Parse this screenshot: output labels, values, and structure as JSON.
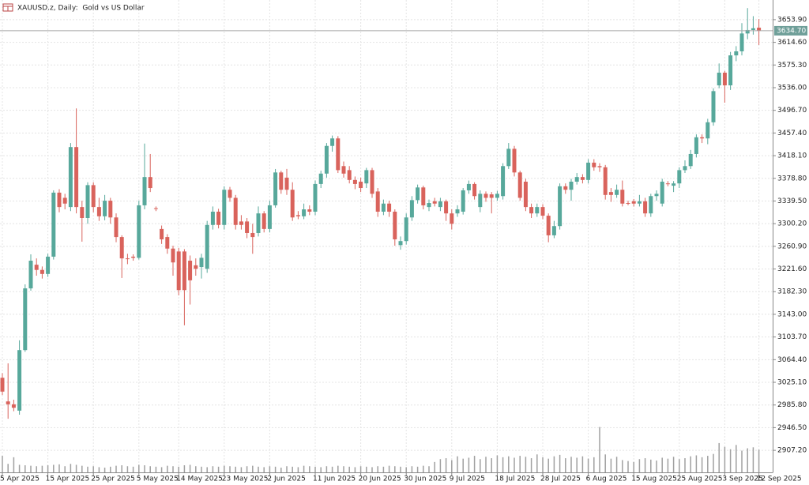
{
  "chart_data": {
    "type": "candlestick",
    "title": "XAUUSD.z, Daily:  Gold vs US Dollar",
    "categories": [
      "5 Apr 2025",
      null,
      null,
      null,
      null,
      null,
      null,
      null,
      "15 Apr 2025",
      null,
      null,
      null,
      null,
      null,
      null,
      null,
      "25 Apr 2025",
      null,
      null,
      null,
      null,
      null,
      null,
      null,
      "5 May 2025",
      null,
      null,
      null,
      null,
      null,
      null,
      "14 May 2025",
      null,
      null,
      null,
      null,
      null,
      null,
      null,
      "23 May 2025",
      null,
      null,
      null,
      null,
      null,
      null,
      null,
      "2 Jun 2025",
      null,
      null,
      null,
      null,
      null,
      null,
      null,
      "11 Jun 2025",
      null,
      null,
      null,
      null,
      null,
      null,
      null,
      "20 Jun 2025",
      null,
      null,
      null,
      null,
      null,
      null,
      null,
      "30 Jun 2025",
      null,
      null,
      null,
      null,
      null,
      null,
      null,
      "9 Jul 2025",
      null,
      null,
      null,
      null,
      null,
      null,
      null,
      "18 Jul 2025",
      null,
      null,
      null,
      null,
      null,
      null,
      null,
      "28 Jul 2025",
      null,
      null,
      null,
      null,
      null,
      null,
      null,
      "6 Aug 2025",
      null,
      null,
      null,
      null,
      null,
      null,
      null,
      "15 Aug 2025",
      null,
      null,
      null,
      null,
      null,
      null,
      null,
      "25 Aug 2025",
      null,
      null,
      null,
      null,
      null,
      null,
      null,
      "3 Sep 2025",
      null,
      null,
      null,
      null,
      null,
      "12 Sep 2025"
    ],
    "open": [
      3033,
      2992,
      2987,
      2976,
      3081,
      3188,
      3229,
      3220,
      3213,
      3243,
      3354,
      3345,
      3329,
      3433,
      3329,
      3310,
      3367,
      3329,
      3313,
      3340,
      3311,
      3277,
      3240,
      3243,
      3241,
      3332,
      3381,
      3327,
      3291,
      3277,
      3257,
      3252,
      3252,
      3236,
      3228,
      3225,
      3222,
      3298,
      3321,
      3298,
      3359,
      3345,
      3304,
      3304,
      3284,
      3284,
      3318,
      3291,
      3332,
      3389,
      3380,
      3359,
      3315,
      3313,
      3325,
      3321,
      3369,
      3387,
      3435,
      3448,
      3400,
      3393,
      3376,
      3373,
      3370,
      3393,
      3356,
      3321,
      3335,
      3321,
      3263,
      3270,
      3311,
      3341,
      3363,
      3329,
      3339,
      3329,
      3339,
      3318,
      3318,
      3321,
      3358,
      3369,
      3329,
      3352,
      3351,
      3345,
      3348,
      3400,
      3430,
      3389,
      3373,
      3329,
      3318,
      3329,
      3314,
      3280,
      3296,
      3365,
      3359,
      3373,
      3381,
      3376,
      3406,
      3400,
      3398,
      3355,
      3350,
      3359,
      3336,
      3339,
      3335,
      3339,
      3318,
      3348,
      3335,
      3370,
      3366,
      3370,
      3393,
      3400,
      3421,
      3450,
      3448,
      3476,
      3540,
      3562,
      3540,
      3592,
      3599,
      3630,
      3636,
      3640
    ],
    "high": [
      3041,
      3058,
      2995,
      3098,
      3195,
      3247,
      3240,
      3226,
      3248,
      3358,
      3360,
      3352,
      3440,
      3500,
      3340,
      3372,
      3372,
      3345,
      3350,
      3345,
      3318,
      3280,
      3248,
      3247,
      3340,
      3439,
      3421,
      3330,
      3297,
      3282,
      3262,
      3258,
      3256,
      3245,
      3240,
      3248,
      3305,
      3330,
      3326,
      3365,
      3364,
      3350,
      3315,
      3310,
      3300,
      3330,
      3322,
      3340,
      3395,
      3392,
      3395,
      3372,
      3322,
      3335,
      3332,
      3375,
      3392,
      3440,
      3453,
      3452,
      3408,
      3400,
      3382,
      3380,
      3397,
      3397,
      3362,
      3342,
      3340,
      3325,
      3278,
      3318,
      3348,
      3368,
      3366,
      3342,
      3345,
      3345,
      3342,
      3325,
      3332,
      3362,
      3375,
      3372,
      3358,
      3356,
      3355,
      3357,
      3405,
      3440,
      3435,
      3392,
      3378,
      3335,
      3335,
      3334,
      3318,
      3305,
      3370,
      3370,
      3378,
      3388,
      3386,
      3412,
      3412,
      3405,
      3402,
      3362,
      3368,
      3375,
      3340,
      3343,
      3350,
      3345,
      3352,
      3358,
      3378,
      3374,
      3374,
      3398,
      3410,
      3428,
      3455,
      3455,
      3482,
      3535,
      3578,
      3565,
      3598,
      3608,
      3648,
      3674,
      3660,
      3655
    ],
    "low": [
      3003,
      2962,
      2975,
      2969,
      3078,
      3184,
      3210,
      3205,
      3208,
      3238,
      3320,
      3325,
      3322,
      3318,
      3269,
      3300,
      3320,
      3305,
      3306,
      3300,
      3268,
      3206,
      3230,
      3236,
      3238,
      3325,
      3355,
      3322,
      3265,
      3248,
      3210,
      3176,
      3124,
      3160,
      3210,
      3205,
      3215,
      3290,
      3292,
      3290,
      3338,
      3290,
      3290,
      3275,
      3248,
      3278,
      3285,
      3285,
      3328,
      3352,
      3350,
      3305,
      3308,
      3308,
      3315,
      3315,
      3362,
      3380,
      3425,
      3388,
      3380,
      3370,
      3360,
      3355,
      3362,
      3345,
      3312,
      3315,
      3312,
      3262,
      3255,
      3264,
      3305,
      3335,
      3325,
      3322,
      3330,
      3322,
      3305,
      3290,
      3312,
      3316,
      3352,
      3342,
      3320,
      3338,
      3318,
      3340,
      3342,
      3395,
      3382,
      3340,
      3322,
      3310,
      3312,
      3308,
      3268,
      3275,
      3290,
      3352,
      3340,
      3368,
      3370,
      3370,
      3392,
      3390,
      3342,
      3338,
      3345,
      3330,
      3332,
      3330,
      3330,
      3312,
      3312,
      3340,
      3330,
      3365,
      3355,
      3362,
      3388,
      3395,
      3415,
      3440,
      3438,
      3470,
      3535,
      3510,
      3532,
      3582,
      3592,
      3620,
      3628,
      3610
    ],
    "close": [
      3009,
      2987,
      2981,
      3081,
      3188,
      3236,
      3220,
      3213,
      3243,
      3354,
      3329,
      3335,
      3433,
      3329,
      3310,
      3367,
      3329,
      3313,
      3340,
      3311,
      3277,
      3240,
      3239,
      3241,
      3332,
      3381,
      3362,
      3326,
      3273,
      3257,
      3233,
      3185,
      3185,
      3202,
      3222,
      3241,
      3298,
      3321,
      3298,
      3359,
      3345,
      3298,
      3298,
      3284,
      3277,
      3318,
      3291,
      3332,
      3389,
      3359,
      3359,
      3311,
      3313,
      3325,
      3321,
      3369,
      3387,
      3435,
      3448,
      3393,
      3387,
      3376,
      3369,
      3362,
      3393,
      3352,
      3321,
      3335,
      3321,
      3273,
      3270,
      3311,
      3341,
      3363,
      3332,
      3336,
      3335,
      3339,
      3318,
      3300,
      3325,
      3358,
      3369,
      3348,
      3352,
      3345,
      3345,
      3352,
      3400,
      3430,
      3389,
      3345,
      3329,
      3318,
      3329,
      3314,
      3280,
      3296,
      3365,
      3359,
      3373,
      3381,
      3376,
      3406,
      3398,
      3398,
      3350,
      3350,
      3359,
      3335,
      3335,
      3335,
      3339,
      3318,
      3348,
      3352,
      3373,
      3369,
      3370,
      3393,
      3400,
      3421,
      3450,
      3448,
      3476,
      3530,
      3562,
      3540,
      3592,
      3599,
      3630,
      3636,
      3639,
      3635
    ],
    "volumes": [
      3.5,
      1.8,
      3.2,
      1.6,
      1.5,
      1.4,
      1.3,
      1.4,
      1.5,
      1.6,
      1.7,
      1.3,
      1.8,
      1.6,
      1.4,
      1.2,
      1.3,
      1.1,
      1.0,
      1.2,
      1.4,
      1.5,
      1.3,
      1.2,
      1.6,
      1.5,
      1.3,
      1.2,
      1.1,
      1.4,
      1.3,
      1.2,
      1.5,
      1.6,
      1.3,
      1.2,
      1.1,
      1.3,
      1.2,
      1.4,
      1.3,
      1.2,
      1.1,
      1.3,
      1.4,
      1.2,
      1.1,
      1.3,
      1.2,
      1.0,
      1.3,
      1.2,
      1.1,
      1.4,
      1.3,
      1.2,
      1.1,
      1.3,
      1.2,
      1.4,
      1.3,
      1.2,
      1.1,
      1.3,
      1.2,
      1.1,
      1.3,
      1.2,
      1.4,
      1.3,
      1.2,
      1.1,
      1.3,
      1.2,
      1.4,
      1.3,
      2.2,
      2.8,
      3.0,
      2.6,
      3.4,
      2.9,
      3.1,
      3.5,
      2.8,
      3.3,
      3.0,
      3.6,
      3.2,
      3.4,
      3.1,
      3.5,
      3.3,
      3.0,
      3.8,
      3.2,
      2.9,
      3.4,
      3.7,
      3.0,
      3.3,
      3.1,
      3.4,
      2.9,
      3.2,
      9.6,
      3.8,
      2.9,
      3.3,
      2.6,
      2.4,
      2.2,
      2.8,
      3.0,
      2.7,
      2.5,
      3.1,
      2.9,
      3.3,
      2.8,
      3.0,
      3.4,
      3.6,
      3.2,
      3.5,
      3.9,
      6.2,
      5.4,
      4.9,
      5.8,
      4.6,
      5.1,
      5.3,
      4.8
    ],
    "y2lim": [
      0,
      100
    ],
    "ylim": [
      2869,
      3688
    ],
    "yticks": [
      {
        "value": 2907.2,
        "label": "2907.20"
      },
      {
        "value": 2946.5,
        "label": "2946.50"
      },
      {
        "value": 2985.8,
        "label": "2985.80"
      },
      {
        "value": 3025.1,
        "label": "3025.10"
      },
      {
        "value": 3064.4,
        "label": "3064.40"
      },
      {
        "value": 3103.7,
        "label": "3103.70"
      },
      {
        "value": 3143,
        "label": "3143.00"
      },
      {
        "value": 3182.3,
        "label": "3182.30"
      },
      {
        "value": 3221.6,
        "label": "3221.60"
      },
      {
        "value": 3260.9,
        "label": "3260.90"
      },
      {
        "value": 3300.2,
        "label": "3300.20"
      },
      {
        "value": 3339.5,
        "label": "3339.50"
      },
      {
        "value": 3378.8,
        "label": "3378.80"
      },
      {
        "value": 3418.1,
        "label": "3418.10"
      },
      {
        "value": 3457.4,
        "label": "3457.40"
      },
      {
        "value": 3496.7,
        "label": "3496.70"
      },
      {
        "value": 3536,
        "label": "3536.00"
      },
      {
        "value": 3575.3,
        "label": "3575.30"
      },
      {
        "value": 3614.6,
        "label": "3614.60"
      },
      {
        "value": 3653.9,
        "label": "3653.90"
      }
    ],
    "last_price": {
      "value": 3634.7,
      "label": "3634.70"
    },
    "up_color": "#57a89b",
    "down_color": "#d9635c",
    "volume_color": "#a0a0a0",
    "grid": true
  }
}
